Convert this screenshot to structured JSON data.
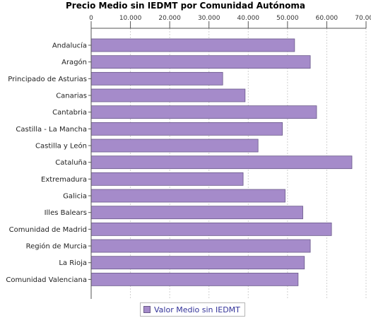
{
  "chart_data": {
    "type": "bar",
    "orientation": "horizontal",
    "title": "Precio Medio sin IEDMT por Comunidad Autónoma",
    "categories": [
      "Andalucía",
      "Aragón",
      "Principado de Asturias",
      "Canarias",
      "Cantabria",
      "Castilla - La Mancha",
      "Castilla y León",
      "Cataluña",
      "Extremadura",
      "Galicia",
      "Illes Balears",
      "Comunidad de Madrid",
      "Región de Murcia",
      "La Rioja",
      "Comunidad Valenciana"
    ],
    "series": [
      {
        "name": "Valor Medio sin IEDMT",
        "color": "#a58bca",
        "values": [
          51800,
          55800,
          33500,
          39200,
          57400,
          48700,
          42500,
          66400,
          38700,
          49400,
          53900,
          61200,
          55800,
          54300,
          52700
        ]
      }
    ],
    "xlim": [
      0,
      70000
    ],
    "ticks": [
      0,
      10000,
      20000,
      30000,
      40000,
      50000,
      60000,
      70000
    ],
    "tick_labels": [
      "0",
      "10.000",
      "20.000",
      "30.000",
      "40.000",
      "50.000",
      "60.000",
      "70.000"
    ],
    "xlabel": "",
    "ylabel": "",
    "grid": true,
    "legend_position": "bottom",
    "axis_position": "top"
  }
}
